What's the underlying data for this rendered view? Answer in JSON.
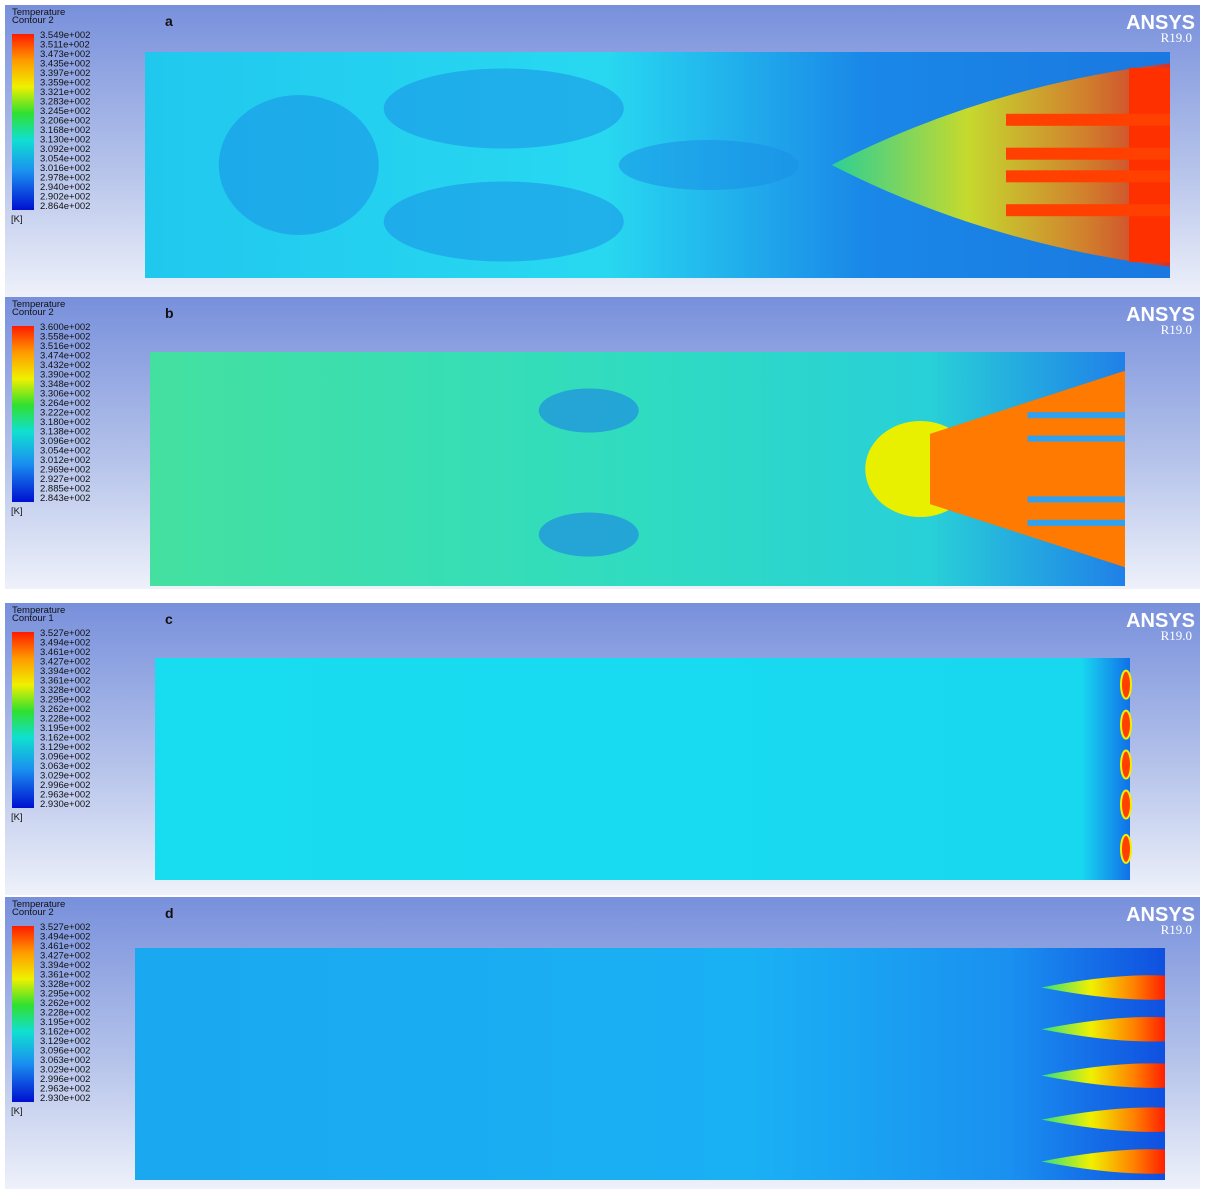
{
  "panels": [
    {
      "label": "a",
      "legend_title": "Temperature",
      "legend_subtitle": "Contour 2",
      "unit": "[K]",
      "brand": "ANSYS",
      "version": "R19.0",
      "legend_values": [
        "3.549e+002",
        "3.511e+002",
        "3.473e+002",
        "3.435e+002",
        "3.397e+002",
        "3.359e+002",
        "3.321e+002",
        "3.283e+002",
        "3.245e+002",
        "3.206e+002",
        "3.168e+002",
        "3.130e+002",
        "3.092e+002",
        "3.054e+002",
        "3.016e+002",
        "2.978e+002",
        "2.940e+002",
        "2.902e+002",
        "2.864e+002"
      ]
    },
    {
      "label": "b",
      "legend_title": "Temperature",
      "legend_subtitle": "Contour 2",
      "unit": "[K]",
      "brand": "ANSYS",
      "version": "R19.0",
      "legend_values": [
        "3.600e+002",
        "3.558e+002",
        "3.516e+002",
        "3.474e+002",
        "3.432e+002",
        "3.390e+002",
        "3.348e+002",
        "3.306e+002",
        "3.264e+002",
        "3.222e+002",
        "3.180e+002",
        "3.138e+002",
        "3.096e+002",
        "3.054e+002",
        "3.012e+002",
        "2.969e+002",
        "2.927e+002",
        "2.885e+002",
        "2.843e+002"
      ]
    },
    {
      "label": "c",
      "legend_title": "Temperature",
      "legend_subtitle": "Contour 1",
      "unit": "[K]",
      "brand": "ANSYS",
      "version": "R19.0",
      "legend_values": [
        "3.527e+002",
        "3.494e+002",
        "3.461e+002",
        "3.427e+002",
        "3.394e+002",
        "3.361e+002",
        "3.328e+002",
        "3.295e+002",
        "3.262e+002",
        "3.228e+002",
        "3.195e+002",
        "3.162e+002",
        "3.129e+002",
        "3.096e+002",
        "3.063e+002",
        "3.029e+002",
        "2.996e+002",
        "2.963e+002",
        "2.930e+002"
      ]
    },
    {
      "label": "d",
      "legend_title": "Temperature",
      "legend_subtitle": "Contour 2",
      "unit": "[K]",
      "brand": "ANSYS",
      "version": "R19.0",
      "legend_values": [
        "3.527e+002",
        "3.494e+002",
        "3.461e+002",
        "3.427e+002",
        "3.394e+002",
        "3.361e+002",
        "3.328e+002",
        "3.295e+002",
        "3.262e+002",
        "3.228e+002",
        "3.195e+002",
        "3.162e+002",
        "3.129e+002",
        "3.096e+002",
        "3.063e+002",
        "3.029e+002",
        "2.996e+002",
        "2.963e+002",
        "2.930e+002"
      ]
    }
  ]
}
